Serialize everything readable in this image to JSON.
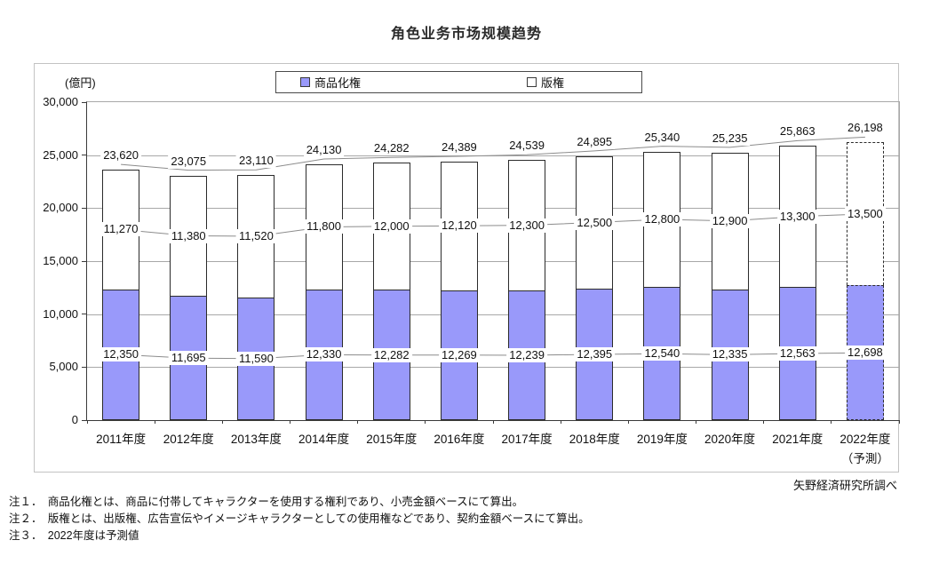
{
  "title": "角色业务市场规模趋势",
  "y_axis": {
    "unit_label": "(億円)",
    "ticks": [
      "30,000",
      "25,000",
      "20,000",
      "15,000",
      "10,000",
      "5,000",
      "0"
    ]
  },
  "legend": [
    {
      "label": "商品化権",
      "color": "#9999fa"
    },
    {
      "label": "版権",
      "color": "#ffffff"
    }
  ],
  "colors": {
    "bar_fill": "#9999fa",
    "bar_border": "#2b2b2b",
    "gridline": "#a8a8a8",
    "connector": "#8c8c8c"
  },
  "chart_data": {
    "type": "bar",
    "stacked": true,
    "title": "角色业务市场规模趋势",
    "ylabel": "(億円)",
    "ylim": [
      0,
      30000
    ],
    "ytick_step": 5000,
    "grid": true,
    "legend_position": "top-center",
    "categories": [
      "2011年度",
      "2012年度",
      "2013年度",
      "2014年度",
      "2015年度",
      "2016年度",
      "2017年度",
      "2018年度",
      "2019年度",
      "2020年度",
      "2021年度",
      "2022年度"
    ],
    "forecast_note": "（予測）",
    "forecast_last_category": true,
    "series": [
      {
        "name": "商品化権",
        "color": "#9999fa",
        "values": [
          12350,
          11695,
          11590,
          12330,
          12282,
          12269,
          12239,
          12395,
          12540,
          12335,
          12563,
          12698
        ]
      },
      {
        "name": "版権",
        "color": "#ffffff",
        "values": [
          11270,
          11380,
          11520,
          11800,
          12000,
          12120,
          12300,
          12500,
          12800,
          12900,
          13300,
          13500
        ]
      }
    ],
    "totals": [
      23620,
      23075,
      23110,
      24130,
      24282,
      24389,
      24539,
      24895,
      25340,
      25235,
      25863,
      26198
    ]
  },
  "source": "矢野経済研究所調べ",
  "notes": [
    "注１．　商品化権とは、商品に付帯してキャラクターを使用する権利であり、小売金額ベースにて算出。",
    "注２．　版権とは、出版権、広告宣伝やイメージキャラクターとしての使用権などであり、契約金額ベースにて算出。",
    "注３．　2022年度は予測値"
  ]
}
